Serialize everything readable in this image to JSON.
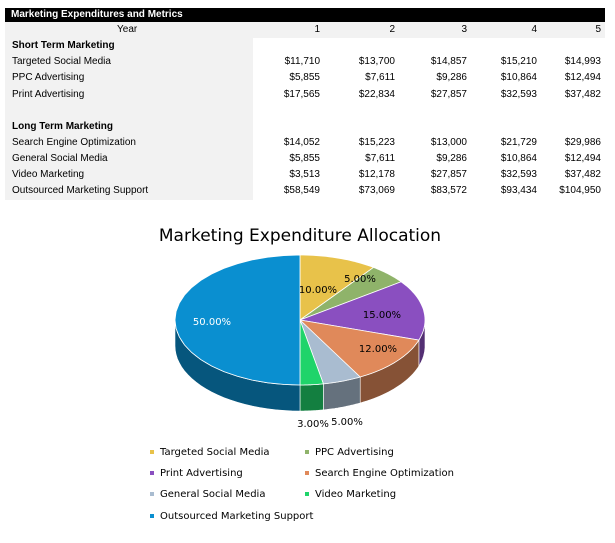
{
  "table": {
    "title": "Marketing Expenditures and Metrics",
    "year_label": "Year",
    "years": [
      "1",
      "2",
      "3",
      "4",
      "5"
    ],
    "sections": [
      {
        "heading": "Short Term Marketing",
        "rows": [
          {
            "label": "Targeted Social Media",
            "values": [
              "$11,710",
              "$13,700",
              "$14,857",
              "$15,210",
              "$14,993"
            ]
          },
          {
            "label": "PPC Advertising",
            "values": [
              "$5,855",
              "$7,611",
              "$9,286",
              "$10,864",
              "$12,494"
            ]
          },
          {
            "label": "Print Advertising",
            "values": [
              "$17,565",
              "$22,834",
              "$27,857",
              "$32,593",
              "$37,482"
            ]
          }
        ]
      },
      {
        "heading": "Long Term Marketing",
        "rows": [
          {
            "label": "Search Engine Optimization",
            "values": [
              "$14,052",
              "$15,223",
              "$13,000",
              "$21,729",
              "$29,986"
            ]
          },
          {
            "label": "General Social Media",
            "values": [
              "$5,855",
              "$7,611",
              "$9,286",
              "$10,864",
              "$12,494"
            ]
          },
          {
            "label": "Video Marketing",
            "values": [
              "$3,513",
              "$12,178",
              "$27,857",
              "$32,593",
              "$37,482"
            ]
          },
          {
            "label": "Outsourced Marketing Support",
            "values": [
              "$58,549",
              "$73,069",
              "$83,572",
              "$93,434",
              "$104,950"
            ]
          }
        ]
      }
    ]
  },
  "chart_data": {
    "type": "pie",
    "title": "Marketing Expenditure Allocation",
    "legend_position": "bottom",
    "slices": [
      {
        "name": "Targeted Social Media",
        "value": 10,
        "label": "10.00%",
        "color": "#e8c24a"
      },
      {
        "name": "PPC Advertising",
        "value": 5,
        "label": "5.00%",
        "color": "#8fb36a"
      },
      {
        "name": "Print Advertising",
        "value": 15,
        "label": "15.00%",
        "color": "#8a4fc0"
      },
      {
        "name": "Search Engine Optimization",
        "value": 12,
        "label": "12.00%",
        "color": "#e0895a"
      },
      {
        "name": "General Social Media",
        "value": 5,
        "label": "5.00%",
        "color": "#a9bcd0"
      },
      {
        "name": "Video Marketing",
        "value": 3,
        "label": "3.00%",
        "color": "#1fd46a"
      },
      {
        "name": "Outsourced Marketing Support",
        "value": 50,
        "label": "50.00%",
        "color": "#0a8fd0"
      }
    ]
  }
}
